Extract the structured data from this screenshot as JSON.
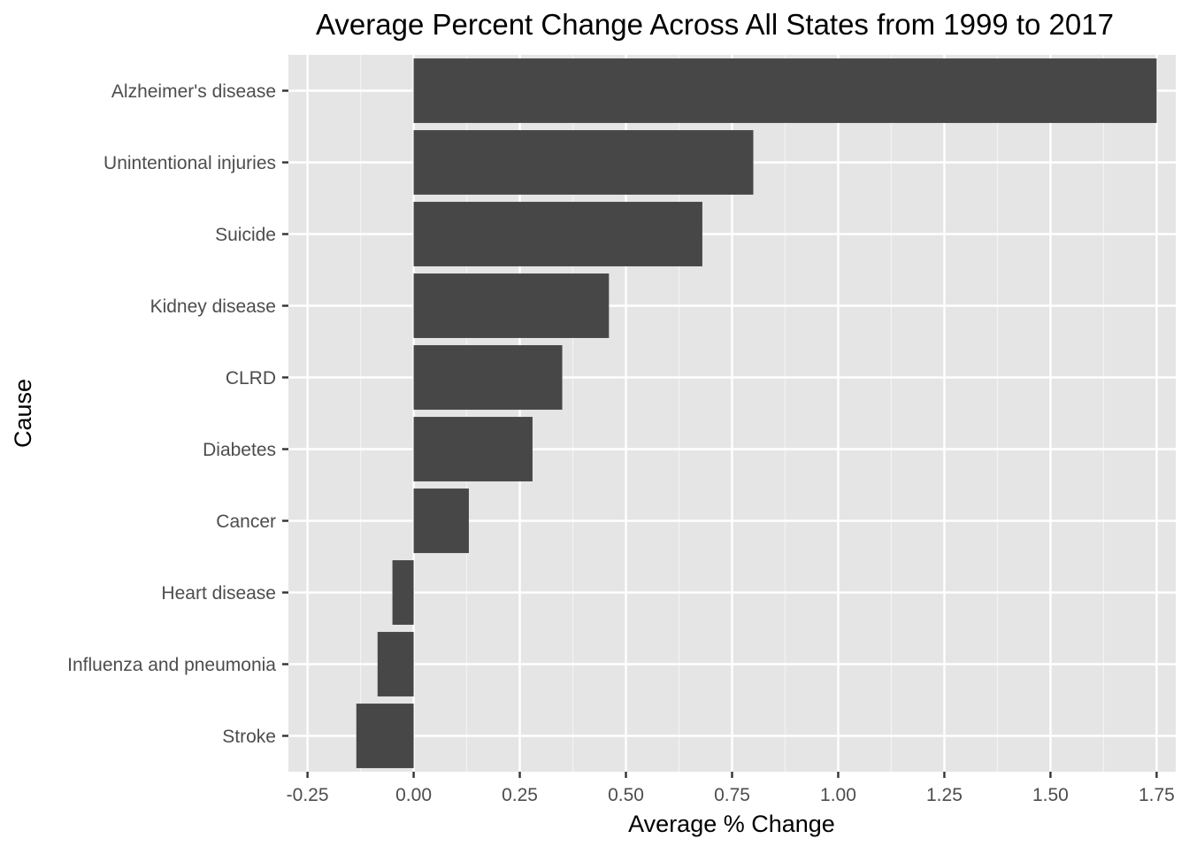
{
  "chart_data": {
    "type": "bar",
    "orientation": "horizontal",
    "title": "Average Percent Change Across All States from 1999 to 2017",
    "xlabel": "Average % Change",
    "ylabel": "Cause",
    "categories": [
      "Alzheimer's disease",
      "Unintentional injuries",
      "Suicide",
      "Kidney disease",
      "CLRD",
      "Diabetes",
      "Cancer",
      "Heart disease",
      "Influenza and pneumonia",
      "Stroke"
    ],
    "values": [
      1.75,
      0.8,
      0.68,
      0.46,
      0.35,
      0.28,
      0.13,
      -0.05,
      -0.085,
      -0.135
    ],
    "xlim": [
      -0.295,
      1.795
    ],
    "x_ticks": [
      -0.25,
      0,
      0.25,
      0.5,
      0.75,
      1,
      1.25,
      1.5,
      1.75
    ],
    "x_tick_labels": [
      "-0.25",
      "0.00",
      "0.25",
      "0.50",
      "0.75",
      "1.00",
      "1.25",
      "1.50",
      "1.75"
    ],
    "grid": true,
    "colors": {
      "bar": "#474747",
      "panel_background": "#e5e5e5",
      "grid_major": "#ffffff",
      "grid_minor": "#f2f2f2",
      "tick_label": "#4d4d4d",
      "tick_mark": "#333333"
    }
  }
}
